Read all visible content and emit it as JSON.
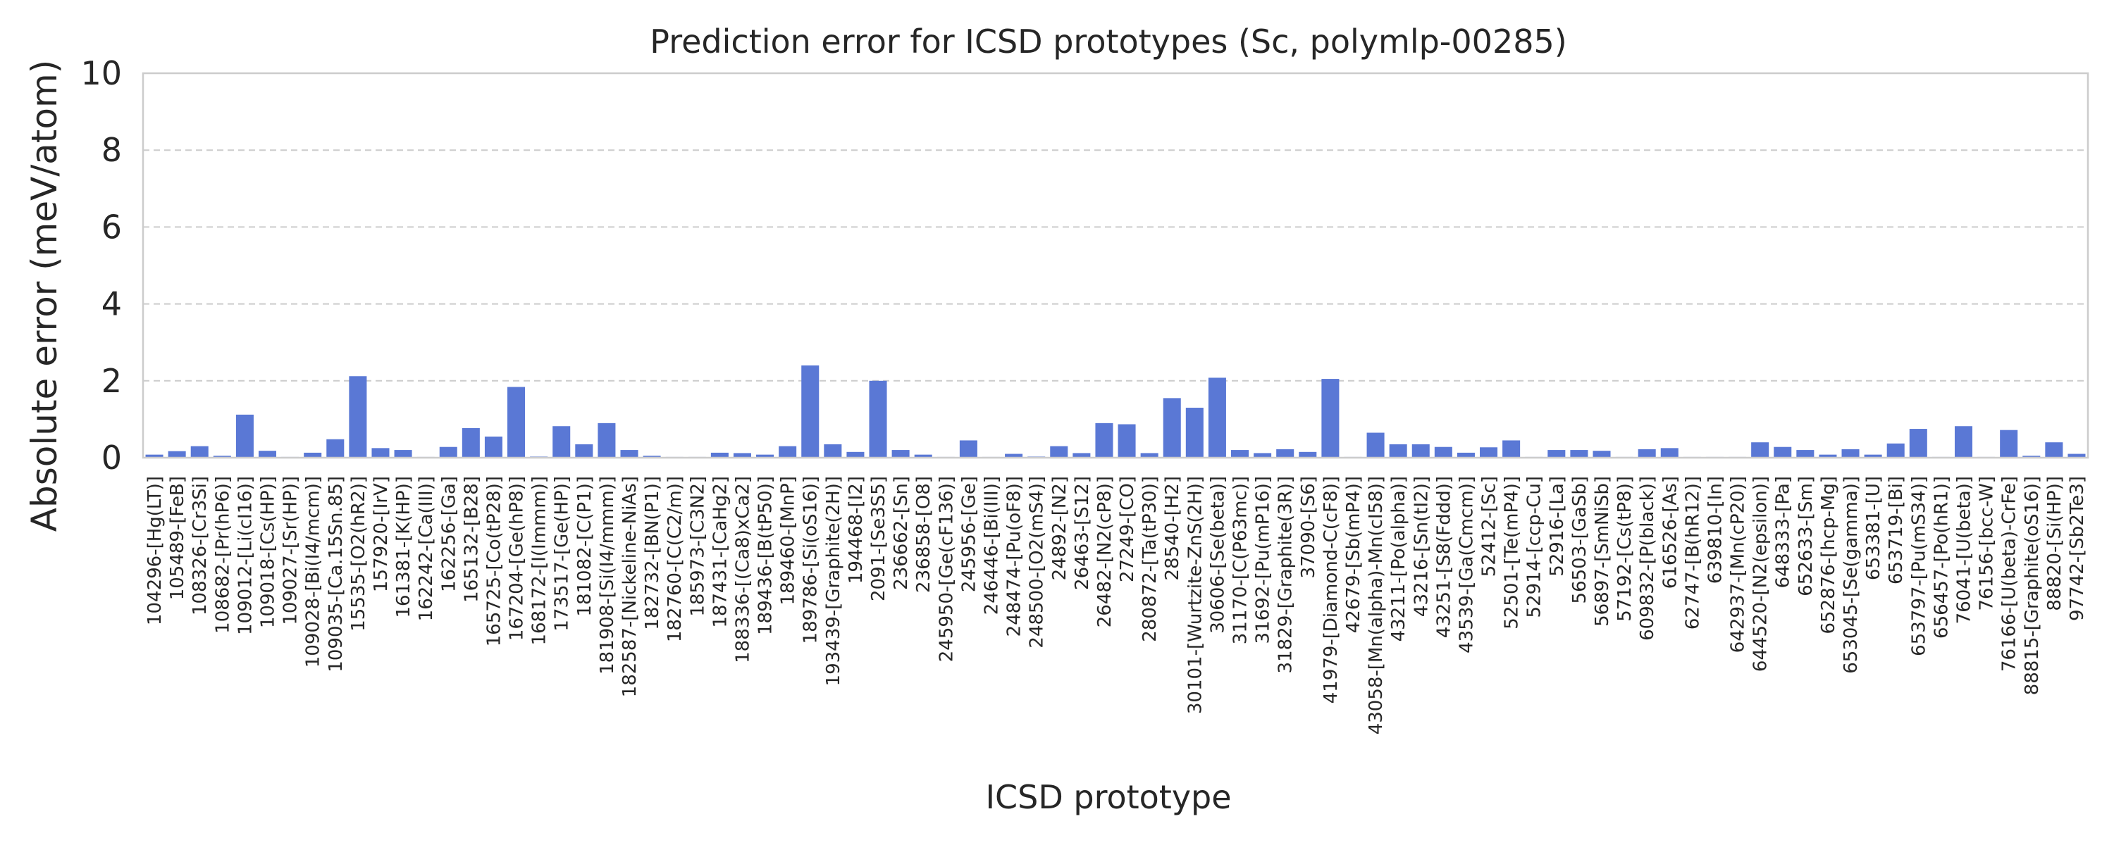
{
  "chart_data": {
    "type": "bar",
    "title": "Prediction error for ICSD prototypes (Sc, polymlp-00285)",
    "xlabel": "ICSD prototype",
    "ylabel": "Absolute error (meV/atom)",
    "ylim": [
      0,
      10
    ],
    "yticks": [
      0,
      2,
      4,
      6,
      8,
      10
    ],
    "grid": "y-dashed",
    "colors": {
      "bar": "#5a78d5",
      "grid": "#cccccc",
      "frame": "#cccccc",
      "text": "#262626"
    },
    "categories": [
      "104296-[Hg(LT)]",
      "105489-[FeB]",
      "108326-[Cr3Si]",
      "108682-[Pr(hP6)]",
      "109012-[Li(cI16)]",
      "109018-[Cs(HP)]",
      "109027-[Sr(HP)]",
      "109028-[Bi(I4/mcm)]",
      "109035-[Ca.15Sn.85]",
      "15535-[O2(hR2)]",
      "157920-[IrV]",
      "161381-[K(HP)]",
      "162242-[Ca(III)]",
      "162256-[Ga]",
      "165132-[B28]",
      "165725-[Co(tP28)]",
      "167204-[Ge(hP8)]",
      "168172-[I(Immm)]",
      "173517-[Ge(HP)]",
      "181082-[C(P1)]",
      "181908-[Si(I4/mmm)]",
      "182587-[Nickeline-NiAs]",
      "182732-[BN(P1)]",
      "182760-[C(C2/m)]",
      "185973-[C3N2]",
      "187431-[CaHg2]",
      "188336-[(Ca8)xCa2]",
      "189436-[B(tP50)]",
      "189460-[MnP]",
      "189786-[Si(oS16)]",
      "193439-[Graphite(2H)]",
      "194468-[I2]",
      "2091-[Se3S5]",
      "236662-[Sn]",
      "236858-[O8]",
      "245950-[Ge(cF136)]",
      "245956-[Ge]",
      "246446-[Bi(III)]",
      "248474-[Pu(oF8)]",
      "248500-[O2(mS4)]",
      "24892-[N2]",
      "26463-[S12]",
      "26482-[N2(cP8)]",
      "27249-[CO]",
      "280872-[Ta(tP30)]",
      "28540-[H2]",
      "30101-[Wurtzite-ZnS(2H)]",
      "30606-[Se(beta)]",
      "31170-[C(P63mc)]",
      "31692-[Pu(mP16)]",
      "31829-[Graphite(3R)]",
      "37090-[S6]",
      "41979-[Diamond-C(cF8)]",
      "42679-[Sb(mP4)]",
      "43058-[Mn(alpha)-Mn(cI58)]",
      "43211-[Po(alpha)]",
      "43216-[Sn(tI2)]",
      "43251-[S8(Fddd)]",
      "43539-[Ga(Cmcm)]",
      "52412-[Sc]",
      "52501-[Te(mP4)]",
      "52914-[ccp-Cu]",
      "52916-[La]",
      "56503-[GaSb]",
      "56897-[SmNiSb]",
      "57192-[Cs(tP8)]",
      "609832-[P(black)]",
      "616526-[As]",
      "62747-[B(hR12)]",
      "639810-[In]",
      "642937-[Mn(cP20)]",
      "644520-[N2(epsilon)]",
      "648333-[Pa]",
      "652633-[Sm]",
      "652876-[hcp-Mg]",
      "653045-[Se(gamma)]",
      "653381-[U]",
      "653719-[Bi]",
      "653797-[Pu(mS34)]",
      "656457-[Po(hR1)]",
      "76041-[U(beta)]",
      "76156-[bcc-W]",
      "76166-[U(beta)-CrFe]",
      "88815-[Graphite(oS16)]",
      "88820-[Si(HP)]",
      "97742-[Sb2Te3]"
    ],
    "values": [
      0.08,
      0.17,
      0.3,
      0.05,
      1.12,
      0.18,
      0.02,
      0.13,
      0.48,
      2.12,
      0.25,
      0.2,
      0.02,
      0.28,
      0.77,
      0.55,
      1.84,
      0.03,
      0.82,
      0.35,
      0.9,
      0.2,
      0.05,
      0.02,
      0.02,
      0.13,
      0.12,
      0.08,
      0.3,
      2.4,
      0.35,
      0.15,
      2.0,
      0.2,
      0.08,
      0.02,
      0.45,
      0.02,
      0.1,
      0.03,
      0.3,
      0.12,
      0.9,
      0.87,
      0.12,
      1.55,
      1.3,
      2.08,
      0.2,
      0.12,
      0.22,
      0.15,
      2.05,
      0.02,
      0.65,
      0.35,
      0.35,
      0.28,
      0.13,
      0.27,
      0.45,
      0.02,
      0.2,
      0.2,
      0.18,
      0.02,
      0.22,
      0.25,
      0.02,
      0.02,
      0.02,
      0.4,
      0.28,
      0.2,
      0.08,
      0.22,
      0.08,
      0.37,
      0.75,
      0.02,
      0.82,
      0.02,
      0.72,
      0.05,
      0.4,
      0.1
    ]
  }
}
